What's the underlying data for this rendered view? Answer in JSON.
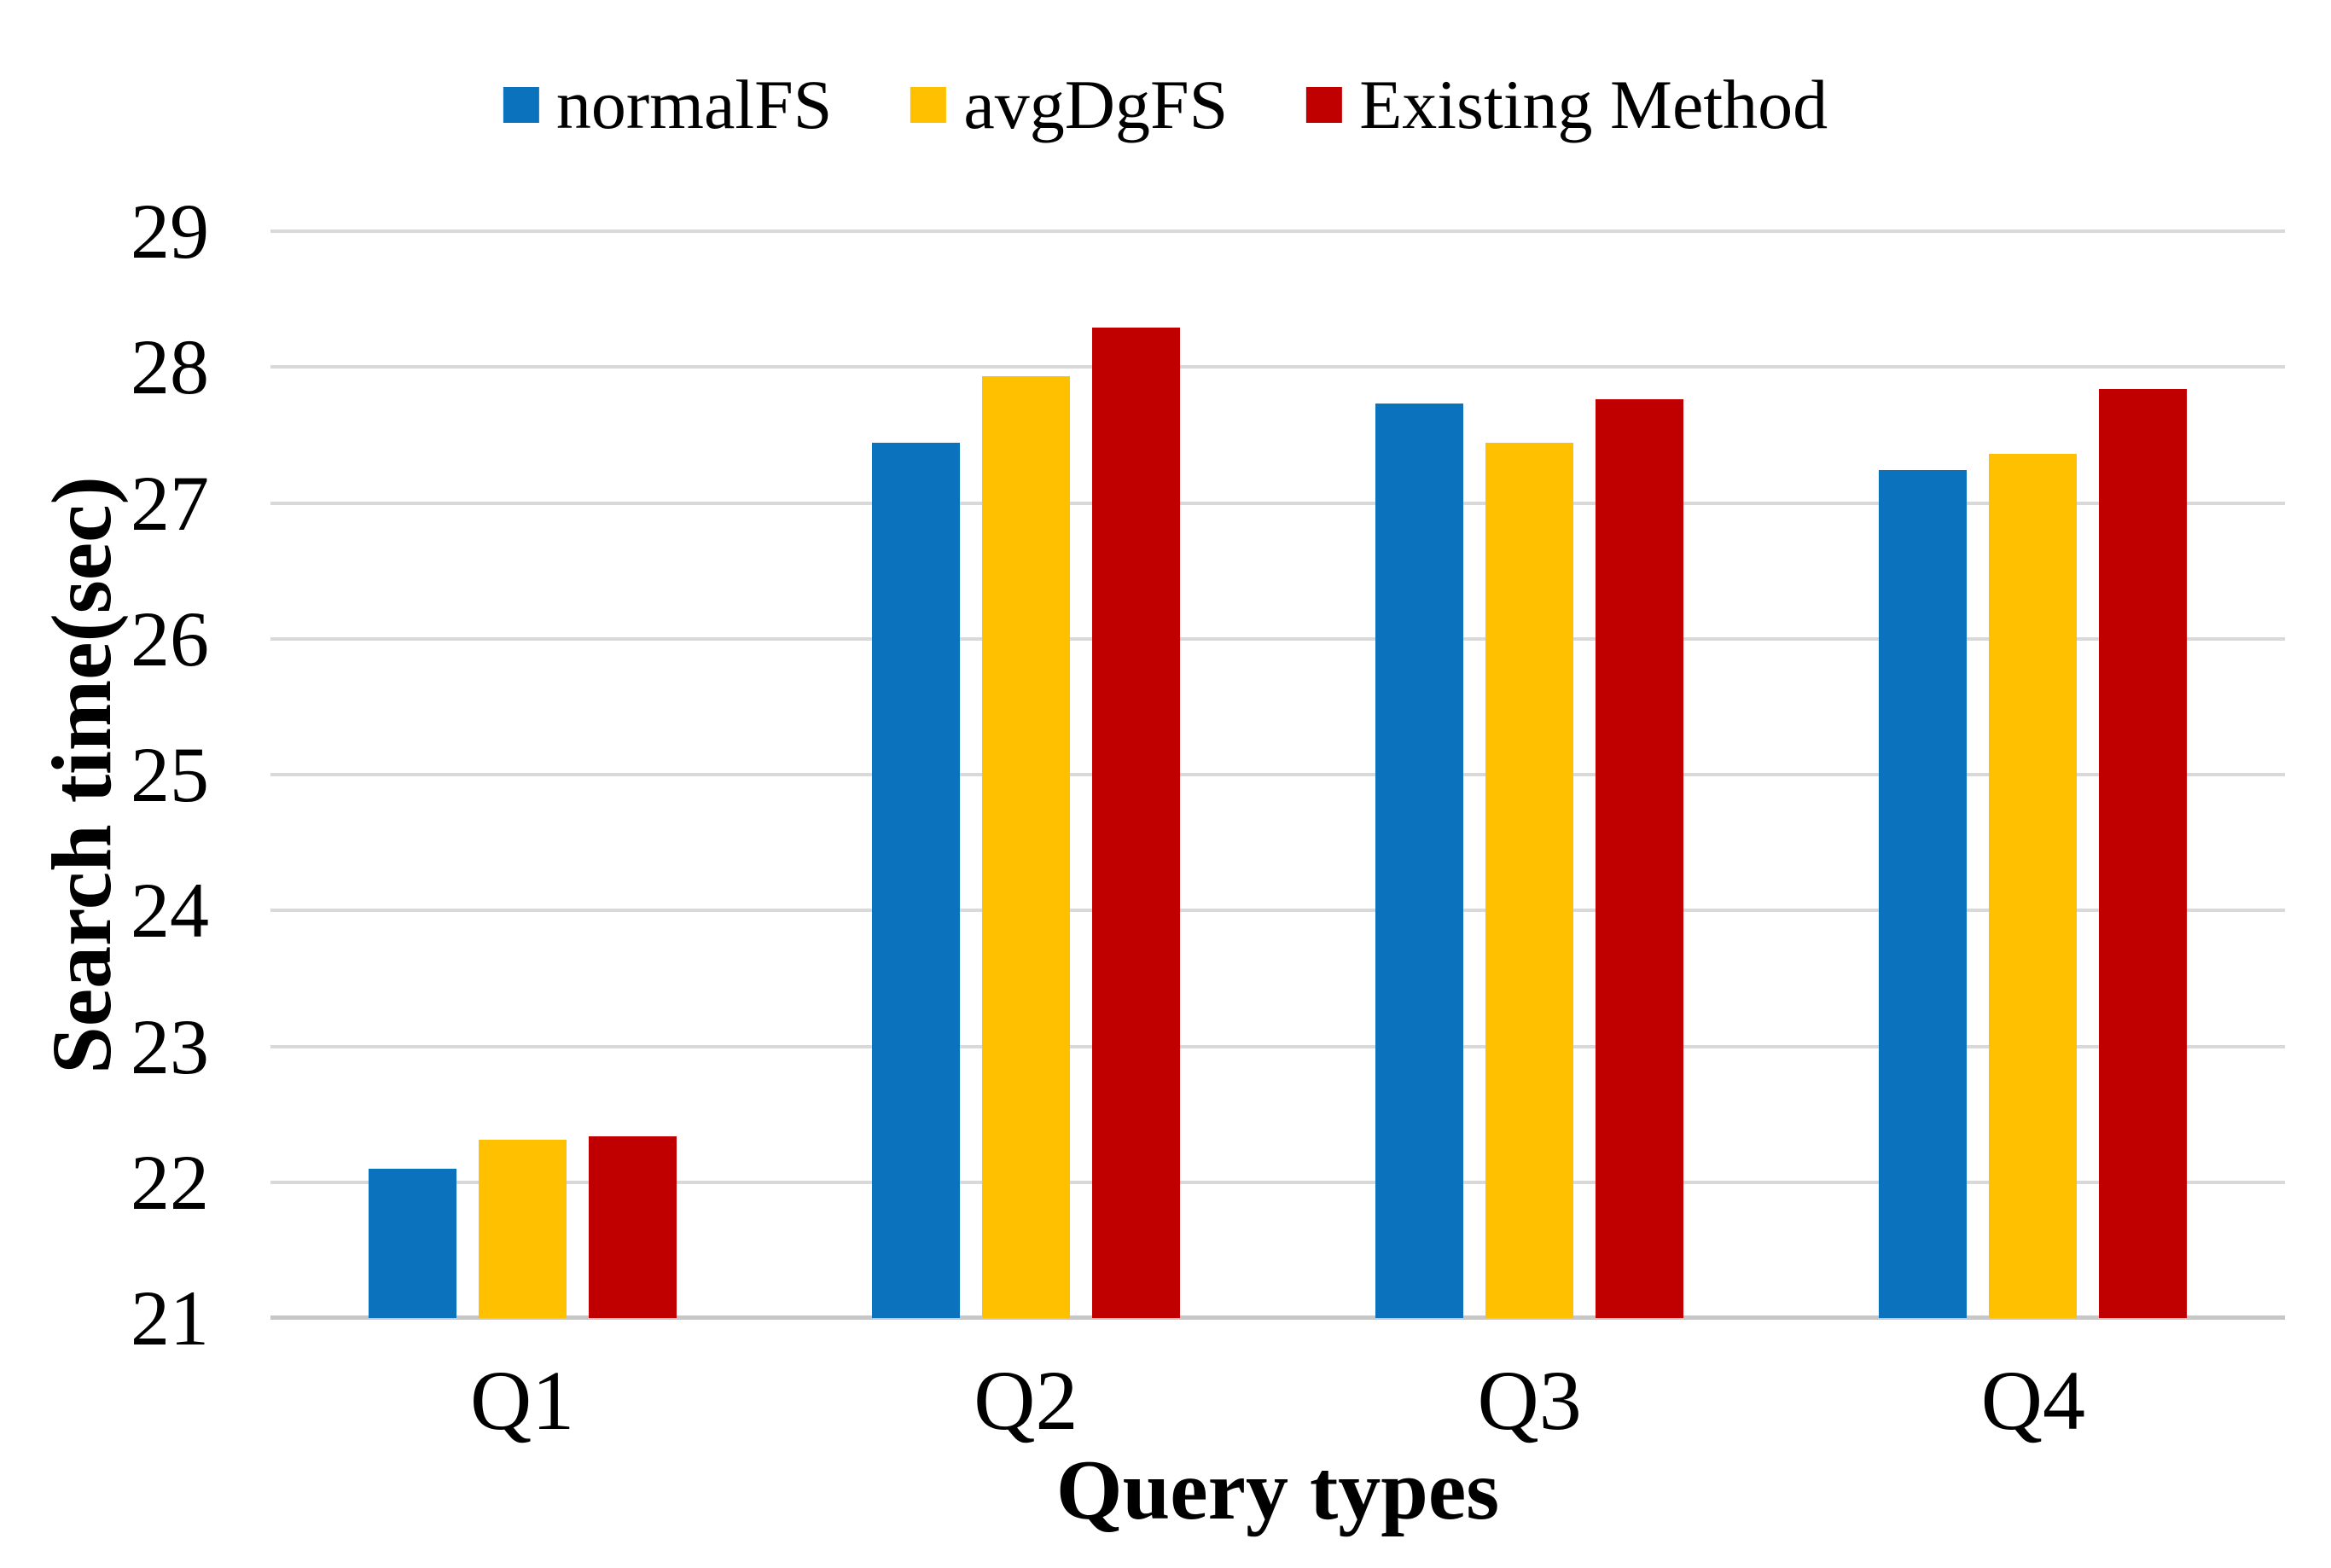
{
  "chart_data": {
    "type": "bar",
    "title": "",
    "categories": [
      "Q1",
      "Q2",
      "Q3",
      "Q4"
    ],
    "series": [
      {
        "name": "normalFS",
        "color": "#0B72BD",
        "values": [
          22.1,
          27.44,
          27.73,
          27.24
        ]
      },
      {
        "name": "avgDgFS",
        "color": "#FFC000",
        "values": [
          22.31,
          27.93,
          27.44,
          27.36
        ]
      },
      {
        "name": "Existing Method",
        "color": "#C00000",
        "values": [
          22.34,
          28.29,
          27.76,
          27.84
        ]
      }
    ],
    "xlabel": "Query types",
    "ylabel": "Search time(sec)",
    "ylim": [
      21,
      29
    ],
    "ytick_step": 1,
    "grid": "horizontal",
    "legend_position": "top-center"
  },
  "colors": {
    "background": "#FFFFFF",
    "gridline": "#D9D9D9",
    "axis_line": "#C7C7C7",
    "text": "#000000"
  }
}
